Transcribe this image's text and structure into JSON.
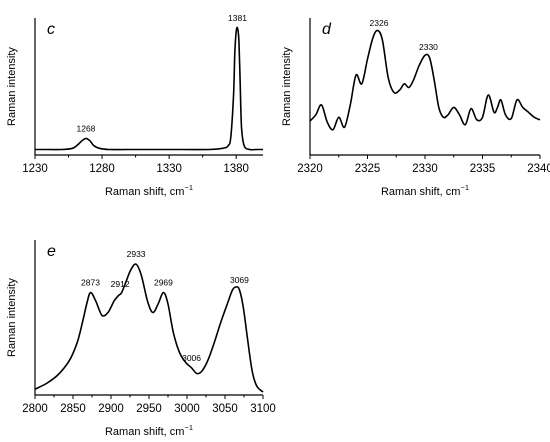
{
  "chart_data": [
    {
      "type": "line",
      "panel_label": "c",
      "xlabel": "Raman shift, cm",
      "xlabel_sup": "−1",
      "ylabel": "Raman intensity",
      "xlim": [
        1230,
        1400
      ],
      "xticks": [
        "1230",
        "1280",
        "1330",
        "1380"
      ],
      "annotations": [
        {
          "text": "1268",
          "x": 1268
        },
        {
          "text": "1381",
          "x": 1381
        }
      ],
      "series": [
        {
          "x": [
            1230,
            1240,
            1250,
            1258,
            1262,
            1265,
            1268,
            1271,
            1274,
            1278,
            1285,
            1300,
            1320,
            1340,
            1360,
            1370,
            1374,
            1376,
            1378,
            1379,
            1380,
            1381,
            1382,
            1383,
            1384,
            1386,
            1390,
            1395,
            1400
          ],
          "y": [
            0.02,
            0.02,
            0.02,
            0.03,
            0.06,
            0.09,
            0.11,
            0.09,
            0.05,
            0.03,
            0.02,
            0.02,
            0.02,
            0.02,
            0.02,
            0.03,
            0.05,
            0.12,
            0.45,
            0.8,
            0.97,
            1.0,
            0.9,
            0.55,
            0.2,
            0.05,
            0.02,
            0.02,
            0.02
          ]
        }
      ]
    },
    {
      "type": "line",
      "panel_label": "d",
      "xlabel": "Raman shift, cm",
      "xlabel_sup": "−1",
      "ylabel": "Raman intensity",
      "xlim": [
        2320,
        2340
      ],
      "xticks": [
        "2320",
        "2325",
        "2330",
        "2335",
        "2340"
      ],
      "annotations": [
        {
          "text": "2326",
          "x": 2326
        },
        {
          "text": "2330",
          "x": 2330.3
        }
      ],
      "series": [
        {
          "x": [
            2320,
            2320.5,
            2321,
            2321.5,
            2322,
            2322.5,
            2323,
            2323.5,
            2324,
            2324.5,
            2325,
            2325.5,
            2325.9,
            2326.3,
            2326.8,
            2327.3,
            2327.8,
            2328.2,
            2328.6,
            2329,
            2329.5,
            2330,
            2330.4,
            2330.8,
            2331.2,
            2331.6,
            2332,
            2332.5,
            2333,
            2333.5,
            2334,
            2334.5,
            2335,
            2335.5,
            2336,
            2336.3,
            2336.6,
            2337,
            2337.5,
            2338,
            2338.5,
            2339,
            2339.5,
            2340
          ],
          "y": [
            0.25,
            0.3,
            0.38,
            0.24,
            0.18,
            0.28,
            0.2,
            0.38,
            0.62,
            0.55,
            0.75,
            0.93,
            0.98,
            0.9,
            0.6,
            0.48,
            0.5,
            0.55,
            0.52,
            0.58,
            0.7,
            0.78,
            0.76,
            0.58,
            0.36,
            0.28,
            0.3,
            0.36,
            0.3,
            0.22,
            0.35,
            0.26,
            0.28,
            0.46,
            0.32,
            0.36,
            0.42,
            0.3,
            0.27,
            0.42,
            0.36,
            0.32,
            0.28,
            0.26
          ]
        }
      ]
    },
    {
      "type": "line",
      "panel_label": "e",
      "xlabel": "Raman shift, cm",
      "xlabel_sup": "−1",
      "ylabel": "Raman intensity",
      "xlim": [
        2800,
        3100
      ],
      "xticks": [
        "2800",
        "2850",
        "2900",
        "2950",
        "3000",
        "3050",
        "3100"
      ],
      "annotations": [
        {
          "text": "2873",
          "x": 2873
        },
        {
          "text": "2912",
          "x": 2912
        },
        {
          "text": "2933",
          "x": 2933
        },
        {
          "text": "2969",
          "x": 2969
        },
        {
          "text": "3006",
          "x": 3006
        },
        {
          "text": "3069",
          "x": 3069
        }
      ],
      "series": [
        {
          "x": [
            2800,
            2815,
            2830,
            2845,
            2855,
            2862,
            2868,
            2873,
            2880,
            2888,
            2896,
            2904,
            2910,
            2914,
            2920,
            2926,
            2933,
            2940,
            2948,
            2955,
            2962,
            2969,
            2975,
            2982,
            2990,
            2998,
            3006,
            3013,
            3020,
            3028,
            3036,
            3045,
            3053,
            3060,
            3065,
            3069,
            3074,
            3080,
            3086,
            3092,
            3100
          ],
          "y": [
            0.02,
            0.06,
            0.12,
            0.22,
            0.34,
            0.48,
            0.62,
            0.7,
            0.64,
            0.54,
            0.56,
            0.64,
            0.68,
            0.7,
            0.78,
            0.86,
            0.9,
            0.82,
            0.64,
            0.56,
            0.62,
            0.7,
            0.62,
            0.42,
            0.28,
            0.21,
            0.17,
            0.13,
            0.15,
            0.23,
            0.35,
            0.5,
            0.62,
            0.72,
            0.74,
            0.72,
            0.6,
            0.36,
            0.14,
            0.04,
            0.0
          ]
        }
      ]
    }
  ]
}
